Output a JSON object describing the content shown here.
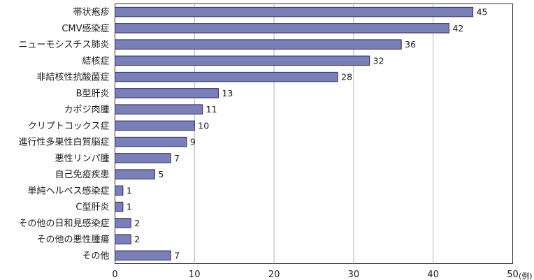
{
  "chart_data": {
    "type": "bar",
    "orientation": "horizontal",
    "categories": [
      "帯状疱疹",
      "CMV感染症",
      "ニューモシスチス肺炎",
      "結核症",
      "非結核性抗酸菌症",
      "B型肝炎",
      "カポジ肉腫",
      "クリプトコックス症",
      "進行性多巣性白質脳症",
      "悪性リンパ腫",
      "自己免疫疾患",
      "単純ヘルペス感染症",
      "C型肝炎",
      "その他の日和見感染症",
      "その他の悪性腫瘍",
      "その他"
    ],
    "values": [
      45,
      42,
      36,
      32,
      28,
      13,
      11,
      10,
      9,
      7,
      5,
      1,
      1,
      2,
      2,
      7
    ],
    "title": "",
    "xlabel": "",
    "ylabel": "",
    "x_unit": "(例)",
    "xlim": [
      0,
      50
    ],
    "xticks": [
      0,
      10,
      20,
      30,
      40,
      50
    ],
    "grid": "vertical",
    "legend": "none",
    "bar_color": "#7b7fb8",
    "bar_edge_color": "#2b2b55"
  }
}
